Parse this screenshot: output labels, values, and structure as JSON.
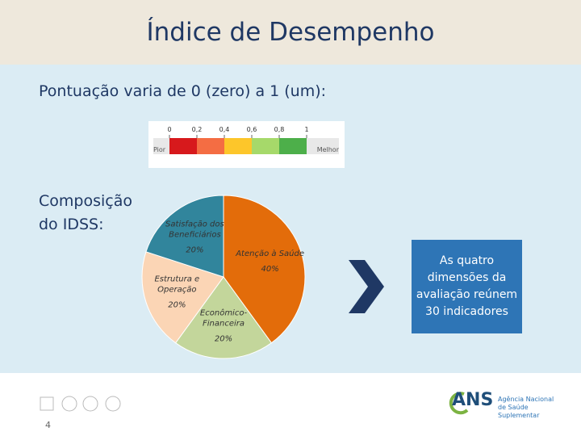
{
  "title": "Índice de Desempenho",
  "subtitle": "Pontuação varia de 0 (zero) a 1 (um):",
  "composition_label": "Composição do IDSS:",
  "scale": {
    "ticks": [
      0,
      {
        "value": 0.2,
        "label": "0,2"
      },
      {
        "value": 0.4,
        "label": "0,4"
      },
      {
        "value": 0.6,
        "label": "0,6"
      },
      {
        "value": 0.8,
        "label": "0,8"
      },
      1
    ],
    "colors": [
      "#d7191c",
      "#f46d43",
      "#fdc62a",
      "#a6d96a",
      "#4daf4a"
    ],
    "low_label": "Pior",
    "high_label": "Melhor"
  },
  "chart_data": {
    "type": "pie",
    "categories": [
      "Atenção à Saúde",
      "Econômico-Financeira",
      "Estrutura e Operação",
      "Satisfação dos Beneficiários"
    ],
    "values": [
      40,
      20,
      20,
      20
    ],
    "value_labels": [
      "40%",
      "20%",
      "20%",
      "20%"
    ],
    "colors": [
      "#e36c0a",
      "#c3d69b",
      "#fbd5b5",
      "#31859c"
    ]
  },
  "callout": "As quatro dimensões da avaliação reúnem 30 indicadores",
  "logo": {
    "name": "ANS",
    "tagline": "Agência Nacional de Saúde Suplementar"
  },
  "page_number": 4
}
